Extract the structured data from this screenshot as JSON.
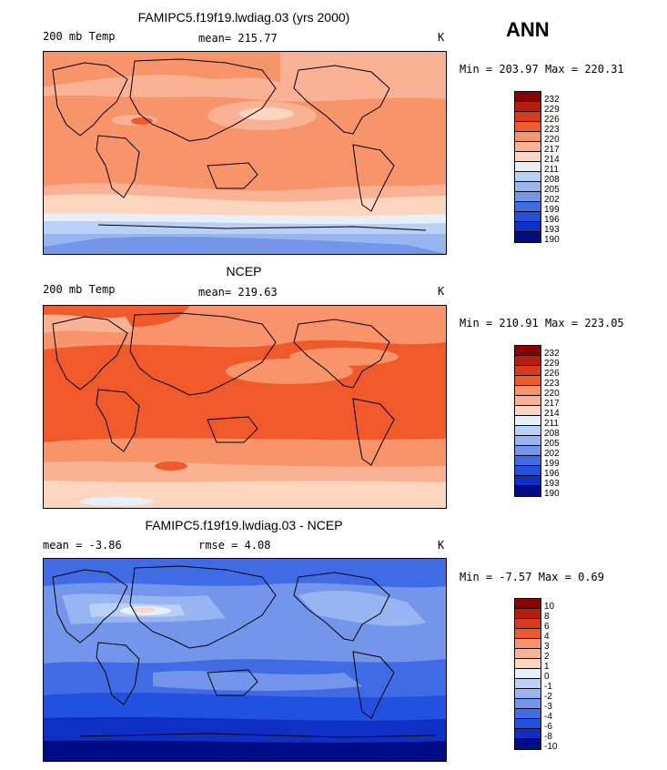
{
  "season": "ANN",
  "panels": [
    {
      "title": "FAMIPC5.f19f19.lwdiag.03 (yrs 2000)",
      "left_label": "200 mb Temp",
      "mean_label": "mean=",
      "mean_value": "215.77",
      "units": "K",
      "min_label": "Min =",
      "min_value": "203.97",
      "max_label": "Max =",
      "max_value": "220.31",
      "levels": [
        "232",
        "229",
        "226",
        "223",
        "220",
        "217",
        "214",
        "211",
        "208",
        "205",
        "202",
        "199",
        "196",
        "193",
        "190"
      ]
    },
    {
      "title": "NCEP",
      "left_label": "200 mb Temp",
      "mean_label": "mean=",
      "mean_value": "219.63",
      "units": "K",
      "min_label": "Min =",
      "min_value": "210.91",
      "max_label": "Max =",
      "max_value": "223.05",
      "levels": [
        "232",
        "229",
        "226",
        "223",
        "220",
        "217",
        "214",
        "211",
        "208",
        "205",
        "202",
        "199",
        "196",
        "193",
        "190"
      ]
    },
    {
      "title": "FAMIPC5.f19f19.lwdiag.03 - NCEP",
      "left_label": "mean =",
      "left_value": "-3.86",
      "mean_label": "rmse =",
      "mean_value": "4.08",
      "units": "K",
      "min_label": "Min =",
      "min_value": "-7.57",
      "max_label": "Max =",
      "max_value": "0.69",
      "levels": [
        "10",
        "8",
        "6",
        "4",
        "3",
        "2",
        "1",
        "0",
        "-1",
        "-2",
        "-3",
        "-4",
        "-6",
        "-8",
        "-10"
      ]
    }
  ],
  "legend_colors": [
    "#8b0000",
    "#b81d0c",
    "#d93a1a",
    "#f05a2a",
    "#f7946a",
    "#f9b394",
    "#fcd6bf",
    "#e6f0fb",
    "#b9d0f7",
    "#97b5f1",
    "#7396ea",
    "#3f6ce5",
    "#2251df",
    "#0e2fc4",
    "#000c85"
  ]
}
